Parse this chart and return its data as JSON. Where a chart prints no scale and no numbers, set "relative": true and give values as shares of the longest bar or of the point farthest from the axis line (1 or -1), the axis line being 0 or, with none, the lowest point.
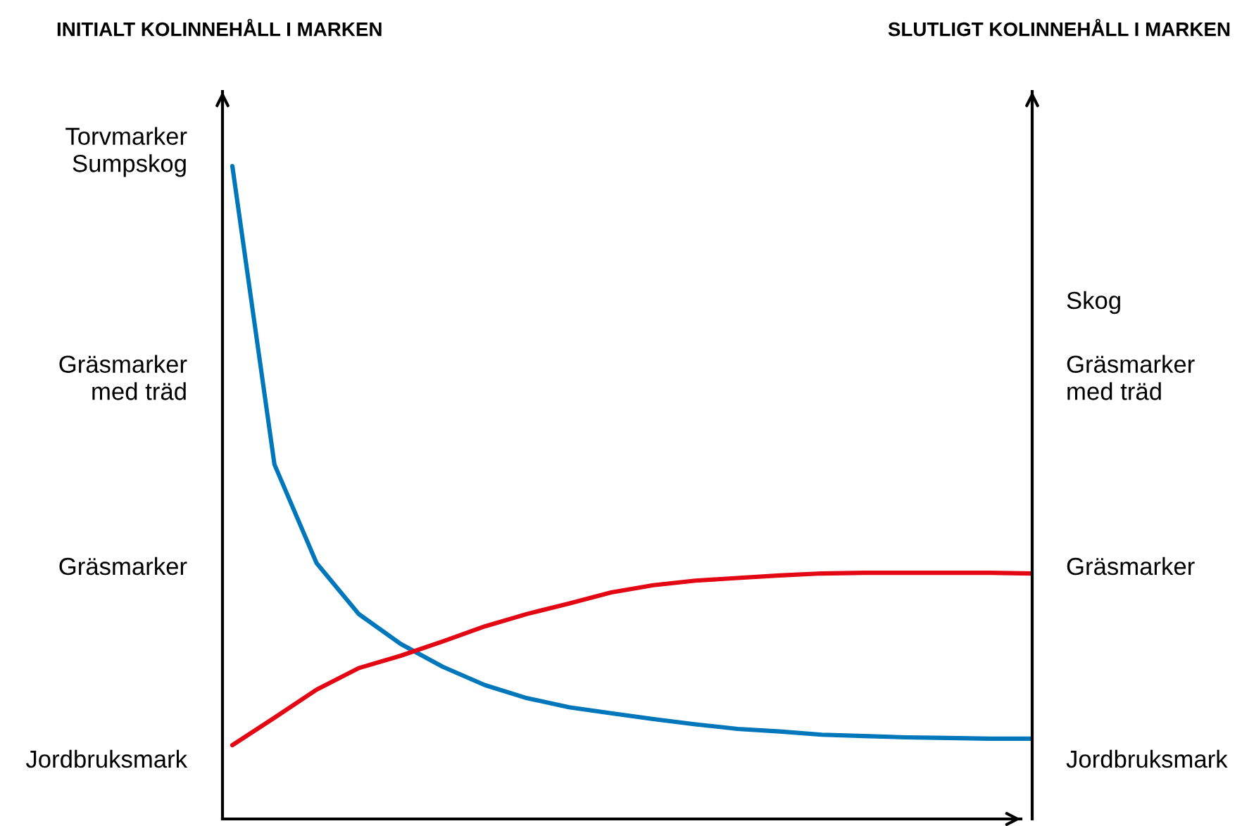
{
  "chart_data": {
    "type": "line",
    "relative": true,
    "categories": [
      null,
      null,
      null,
      null,
      null,
      null,
      null,
      null,
      null,
      null,
      null,
      null,
      null,
      null,
      null,
      null,
      null,
      null,
      null,
      null
    ],
    "series": [
      {
        "color": "#0077bb",
        "values": [
          1.0,
          0.543,
          0.392,
          0.314,
          0.268,
          0.233,
          0.205,
          0.185,
          0.171,
          0.162,
          0.153,
          0.145,
          0.138,
          0.134,
          0.129,
          0.127,
          0.125,
          0.124,
          0.123,
          0.123
        ]
      },
      {
        "color": "#e30613",
        "values": [
          0.113,
          0.155,
          0.198,
          0.231,
          0.25,
          0.272,
          0.295,
          0.314,
          0.33,
          0.347,
          0.358,
          0.365,
          0.369,
          0.373,
          0.376,
          0.377,
          0.377,
          0.377,
          0.377,
          0.376
        ]
      }
    ],
    "annotations": [
      "INITIALT KOLINNEHÅLL I MARKEN",
      "SLUTLIGT KOLINNEHÅLL I MARKEN",
      "Torvmarker\nSumpskog",
      "Gräsmarker\nmed träd",
      "Gräsmarker",
      "Jordbruksmark",
      "Skog",
      "Gräsmarker\nmed träd",
      "Gräsmarker",
      "Jordbruksmark"
    ]
  }
}
